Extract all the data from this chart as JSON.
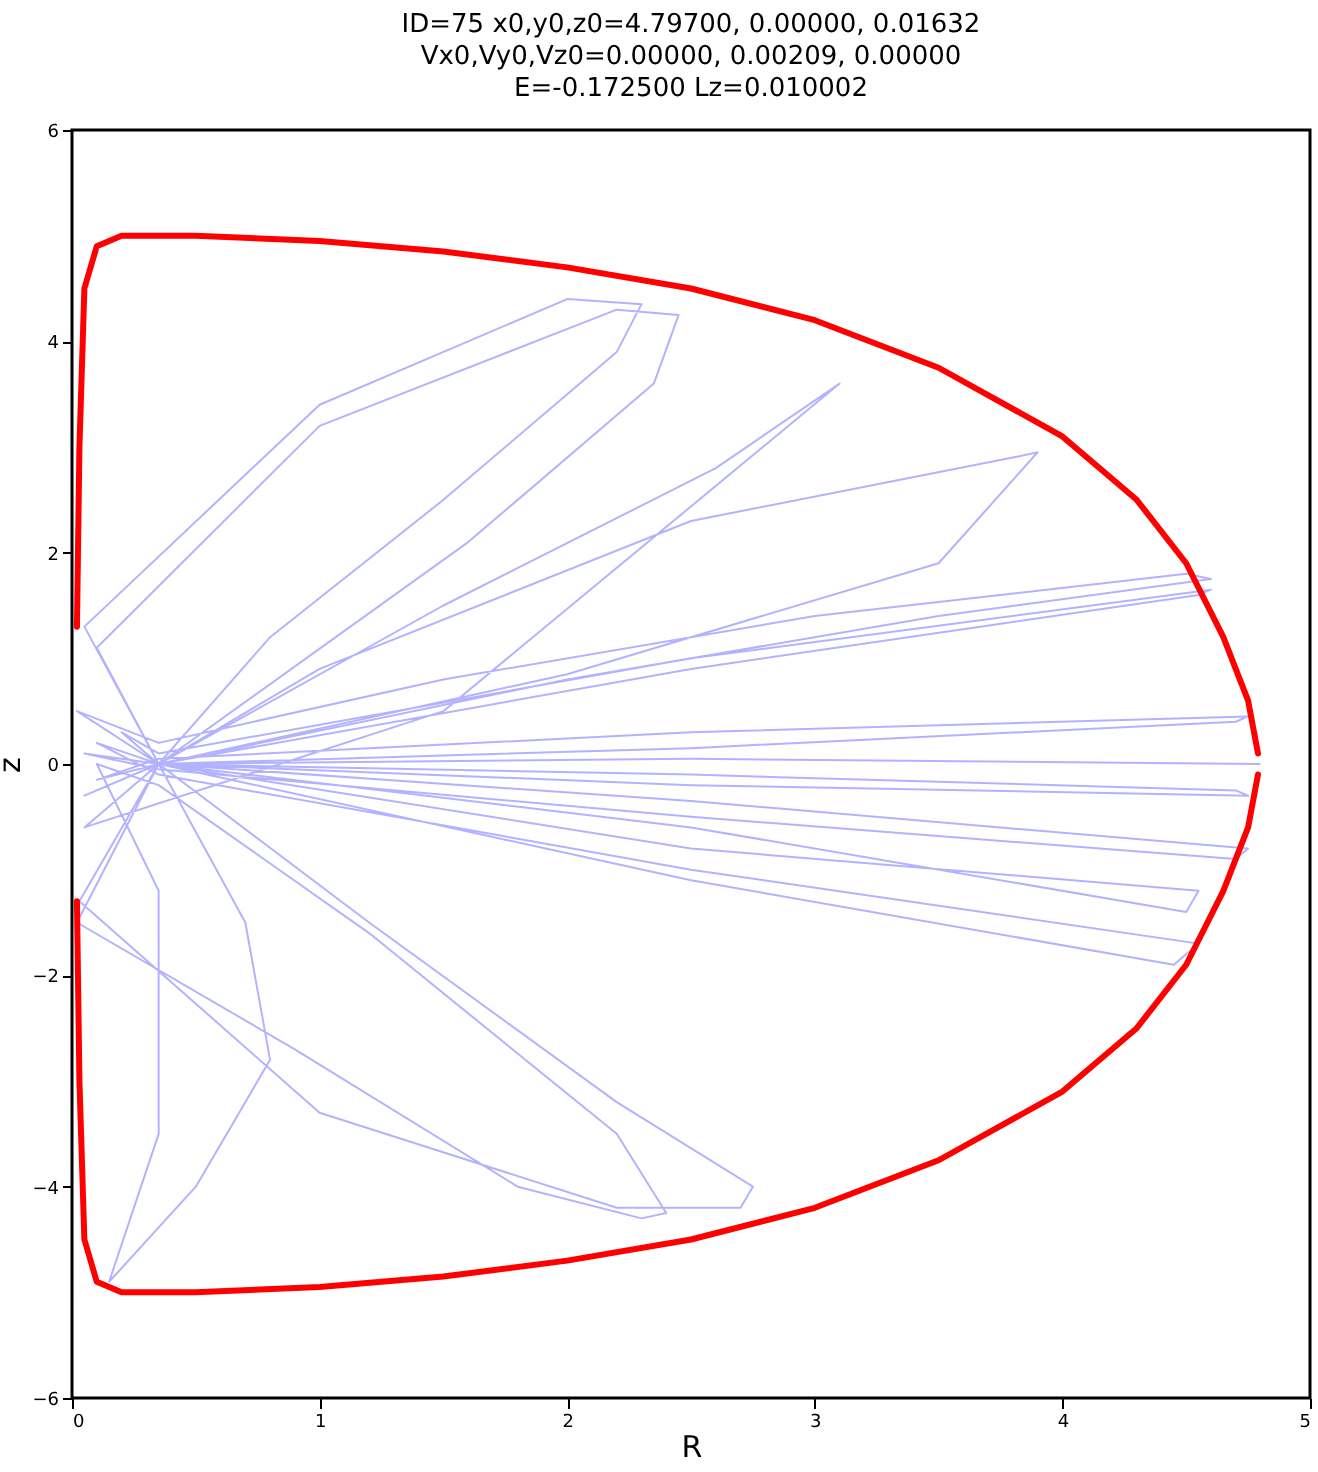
{
  "chart_data": {
    "type": "line",
    "title": "ID=75      x0,y0,z0=4.79700, 0.00000, 0.01632\nVx0,Vy0,Vz0=0.00000, 0.00209, 0.00000\nE=-0.172500    Lz=0.010002",
    "xlabel": "R",
    "ylabel": "z",
    "xlim": [
      0,
      5
    ],
    "xticks": [
      0,
      1,
      2,
      3,
      4,
      5
    ],
    "ylim": [
      -6,
      6
    ],
    "yticks": [
      -6,
      -4,
      -2,
      0,
      2,
      4,
      6
    ],
    "grid": false,
    "marker": "none",
    "line_style": "solid",
    "series": [
      {
        "color": "#0000ff",
        "x": [
          4.797,
          2.5,
          0.35,
          0.1,
          0.35,
          2.5,
          4.75,
          4.7,
          2.5,
          0.35,
          0.05,
          0.35,
          2.5,
          4.7,
          4.75,
          2.5,
          0.35,
          0.02,
          0.35,
          1.5,
          3,
          4.5,
          4.6,
          3.5,
          2,
          0.35,
          0.05,
          0.35,
          2,
          3.5,
          3.9,
          3.8,
          2.5,
          1,
          0.35,
          0.05,
          1,
          2,
          2.3,
          2.2,
          1.5,
          0.8,
          0.35,
          0.1,
          1,
          2.2,
          2.45,
          2.35,
          1.6,
          0.35,
          0.05,
          1.5,
          3.1,
          2.6,
          1.5,
          0.35,
          0.1,
          0.35,
          2.5,
          4.55,
          4.45,
          2.5,
          0.35,
          1.2,
          2.2,
          2.75,
          2.7,
          2.2,
          1,
          0.03,
          0.35,
          0.7,
          0.8,
          0.5,
          0.15,
          0.35,
          0.35,
          0.1,
          0.35,
          1.2,
          2.2,
          2.4,
          2.3,
          1.8,
          0.9,
          0.02,
          0.35,
          2.5,
          4.55,
          4.5,
          2.5,
          0.35,
          2.5,
          4.75,
          4.7,
          2.5,
          0.35,
          0.2,
          0.35,
          2.5,
          4.6,
          4.55,
          2.5,
          0.35
        ],
        "values": [
          0,
          0.05,
          0,
          -0.15,
          0.05,
          0.3,
          0.45,
          0.4,
          0.15,
          0,
          0.1,
          -0.05,
          -0.5,
          -0.9,
          -0.8,
          -0.35,
          0,
          0.5,
          0.2,
          0.8,
          1.4,
          1.8,
          1.75,
          1.4,
          0.8,
          0,
          -0.3,
          0,
          0.85,
          1.9,
          2.95,
          2.9,
          2.3,
          0.9,
          0,
          1.3,
          3.4,
          4.4,
          4.35,
          3.9,
          2.5,
          1.2,
          0,
          1.1,
          3.2,
          4.3,
          4.25,
          3.6,
          2.1,
          0,
          -0.6,
          0.5,
          3.6,
          2.8,
          1.5,
          0,
          0.2,
          -0.1,
          -1,
          -1.7,
          -1.9,
          -1.1,
          0,
          -1.5,
          -3.2,
          -4,
          -4.2,
          -4.2,
          -3.3,
          -1.3,
          0,
          -1.5,
          -2.8,
          -4,
          -4.9,
          -3.5,
          -1.2,
          0,
          -0.2,
          -1.6,
          -3.5,
          -4.25,
          -4.3,
          -4,
          -2.7,
          -1.5,
          0,
          -0.8,
          -1.2,
          -1.4,
          -0.6,
          0,
          -0.2,
          -0.3,
          -0.25,
          -0.1,
          0,
          0.3,
          0.1,
          1,
          1.65,
          1.6,
          0.9,
          0
        ]
      },
      {
        "color": "#ff0000",
        "x": [
          0.02,
          0.03,
          0.05,
          0.1,
          0.2,
          0.5,
          1,
          1.5,
          2,
          2.5,
          3,
          3.5,
          4,
          4.3,
          4.5,
          4.65,
          4.75,
          4.79
        ],
        "values": [
          1.3,
          3,
          4.5,
          4.9,
          5,
          5,
          4.95,
          4.85,
          4.7,
          4.5,
          4.2,
          3.75,
          3.1,
          2.5,
          1.9,
          1.2,
          0.6,
          0.1
        ]
      },
      {
        "color": "#ff0000",
        "x": [
          4.79,
          4.75,
          4.65,
          4.5,
          4.3,
          4,
          3.5,
          3,
          2.5,
          2,
          1.5,
          1,
          0.5,
          0.2,
          0.1,
          0.05,
          0.03,
          0.02
        ],
        "values": [
          -0.1,
          -0.6,
          -1.2,
          -1.9,
          -2.5,
          -3.1,
          -3.75,
          -4.2,
          -4.5,
          -4.7,
          -4.85,
          -4.95,
          -5,
          -5,
          -4.9,
          -4.5,
          -3,
          -1.3
        ]
      }
    ]
  }
}
